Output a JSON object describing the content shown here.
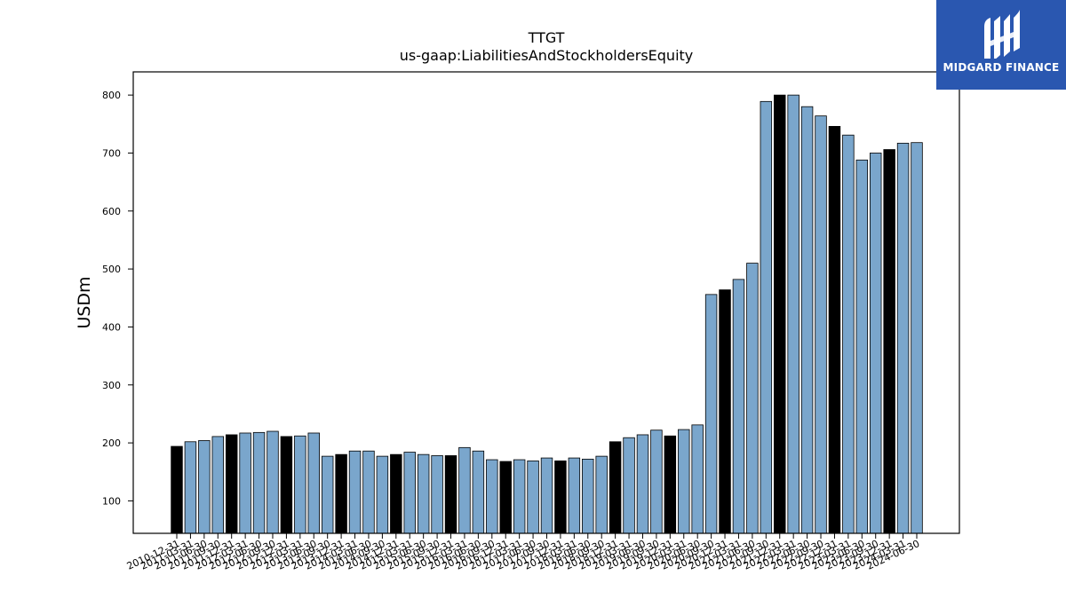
{
  "brand": {
    "name": "MIDGARD FINANCE",
    "color": "#2a57b0",
    "icon": "midgard-logo-icon"
  },
  "chart_data": {
    "type": "bar",
    "title": "TTGT",
    "subtitle": "us-gaap:LiabilitiesAndStockholdersEquity",
    "xlabel": "",
    "ylabel": "USDm",
    "ylim": [
      44,
      840
    ],
    "yticks": [
      100,
      200,
      300,
      400,
      500,
      600,
      700,
      800
    ],
    "grid": false,
    "colors": {
      "fiscal_year_end": "#000000",
      "quarter": "#7aa6cc"
    },
    "categories": [
      "2010-12-31",
      "2011-03-31",
      "2011-06-30",
      "2011-09-30",
      "2011-12-31",
      "2012-03-31",
      "2012-06-30",
      "2012-09-30",
      "2012-12-31",
      "2013-03-31",
      "2013-06-30",
      "2013-09-30",
      "2013-12-31",
      "2014-03-31",
      "2014-06-30",
      "2014-09-30",
      "2014-12-31",
      "2015-03-31",
      "2015-06-30",
      "2015-09-30",
      "2015-12-31",
      "2016-03-31",
      "2016-06-30",
      "2016-09-30",
      "2016-12-31",
      "2017-03-31",
      "2017-06-30",
      "2017-09-30",
      "2017-12-31",
      "2018-03-31",
      "2018-06-30",
      "2018-09-30",
      "2018-12-31",
      "2019-03-31",
      "2019-06-30",
      "2019-09-30",
      "2019-12-31",
      "2020-03-31",
      "2020-06-30",
      "2020-09-30",
      "2020-12-31",
      "2021-03-31",
      "2021-06-30",
      "2021-09-30",
      "2021-12-31",
      "2022-03-31",
      "2022-06-30",
      "2022-09-30",
      "2022-12-31",
      "2023-03-31",
      "2023-06-30",
      "2023-09-30",
      "2023-12-31",
      "2024-03-31",
      "2024-06-30"
    ],
    "values": [
      194,
      202,
      204,
      211,
      214,
      217,
      218,
      220,
      211,
      212,
      217,
      177,
      180,
      186,
      186,
      177,
      180,
      184,
      180,
      178,
      178,
      192,
      186,
      171,
      168,
      171,
      169,
      174,
      169,
      174,
      172,
      177,
      202,
      209,
      214,
      222,
      212,
      223,
      231,
      456,
      464,
      482,
      510,
      789,
      800,
      800,
      780,
      764,
      746,
      731,
      688,
      700,
      706,
      717,
      718
    ],
    "year_end": [
      true,
      false,
      false,
      false,
      true,
      false,
      false,
      false,
      true,
      false,
      false,
      false,
      true,
      false,
      false,
      false,
      true,
      false,
      false,
      false,
      true,
      false,
      false,
      false,
      true,
      false,
      false,
      false,
      true,
      false,
      false,
      false,
      true,
      false,
      false,
      false,
      true,
      false,
      false,
      false,
      true,
      false,
      false,
      false,
      true,
      false,
      false,
      false,
      true,
      false,
      false,
      false,
      true,
      false,
      false
    ]
  }
}
